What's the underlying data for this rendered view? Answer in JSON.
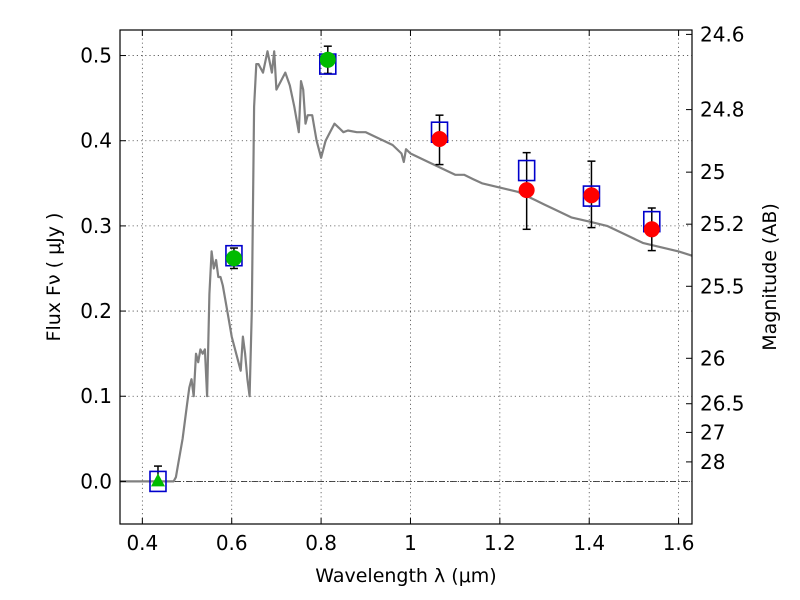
{
  "chart_data": {
    "type": "scatter",
    "xlabel": "Wavelength  λ (μm)",
    "ylabel": "Flux  Fν  ( μJy )",
    "ylabel_right": "Magnitude (AB)",
    "xlim": [
      0.35,
      1.63
    ],
    "ylim": [
      -0.05,
      0.53
    ],
    "x_ticks": [
      0.4,
      0.6,
      0.8,
      1.0,
      1.2,
      1.4,
      1.6
    ],
    "x_tick_labels": [
      "0.4",
      "0.6",
      "0.8",
      "1",
      "1.2",
      "1.4",
      "1.6"
    ],
    "y_ticks": [
      0.0,
      0.1,
      0.2,
      0.3,
      0.4,
      0.5
    ],
    "y_tick_labels": [
      "0.0",
      "0.1",
      "0.2",
      "0.3",
      "0.4",
      "0.5"
    ],
    "right_ticks": [
      {
        "label": "24.6",
        "mag": 24.6
      },
      {
        "label": "24.8",
        "mag": 24.8
      },
      {
        "label": "25",
        "mag": 25.0
      },
      {
        "label": "25.2",
        "mag": 25.2
      },
      {
        "label": "25.5",
        "mag": 25.5
      },
      {
        "label": "26",
        "mag": 26.0
      },
      {
        "label": "26.5",
        "mag": 26.5
      },
      {
        "label": "27",
        "mag": 27.0
      },
      {
        "label": "28",
        "mag": 28.0
      }
    ],
    "grid": true,
    "colors": {
      "template": "#808080",
      "model_box": "#0000cc",
      "detection_red": "#ff0000",
      "detection_green": "#00bb00",
      "errorbar": "#000000",
      "zero_line": "#333333"
    },
    "template_sed": {
      "x": [
        0.35,
        0.47,
        0.475,
        0.48,
        0.49,
        0.5,
        0.505,
        0.51,
        0.515,
        0.52,
        0.525,
        0.53,
        0.535,
        0.54,
        0.545,
        0.55,
        0.555,
        0.56,
        0.565,
        0.57,
        0.575,
        0.58,
        0.59,
        0.6,
        0.61,
        0.62,
        0.625,
        0.63,
        0.635,
        0.64,
        0.645,
        0.65,
        0.655,
        0.66,
        0.67,
        0.68,
        0.69,
        0.695,
        0.7,
        0.71,
        0.72,
        0.73,
        0.74,
        0.75,
        0.755,
        0.76,
        0.765,
        0.77,
        0.78,
        0.79,
        0.8,
        0.81,
        0.82,
        0.83,
        0.84,
        0.85,
        0.86,
        0.88,
        0.9,
        0.92,
        0.94,
        0.96,
        0.98,
        0.985,
        0.99,
        1.0,
        1.02,
        1.04,
        1.06,
        1.08,
        1.1,
        1.12,
        1.14,
        1.16,
        1.2,
        1.24,
        1.28,
        1.3,
        1.32,
        1.36,
        1.4,
        1.44,
        1.48,
        1.52,
        1.56,
        1.6,
        1.63
      ],
      "y": [
        0.0,
        0.0,
        0.005,
        0.02,
        0.05,
        0.09,
        0.11,
        0.12,
        0.1,
        0.15,
        0.14,
        0.155,
        0.15,
        0.155,
        0.1,
        0.22,
        0.27,
        0.25,
        0.26,
        0.24,
        0.24,
        0.23,
        0.2,
        0.17,
        0.15,
        0.13,
        0.17,
        0.15,
        0.12,
        0.1,
        0.2,
        0.44,
        0.49,
        0.49,
        0.48,
        0.505,
        0.48,
        0.505,
        0.46,
        0.47,
        0.48,
        0.465,
        0.44,
        0.41,
        0.47,
        0.46,
        0.42,
        0.43,
        0.43,
        0.4,
        0.38,
        0.4,
        0.41,
        0.42,
        0.415,
        0.41,
        0.412,
        0.41,
        0.41,
        0.405,
        0.4,
        0.395,
        0.385,
        0.375,
        0.39,
        0.385,
        0.38,
        0.375,
        0.37,
        0.365,
        0.36,
        0.36,
        0.355,
        0.35,
        0.345,
        0.34,
        0.33,
        0.325,
        0.32,
        0.31,
        0.305,
        0.3,
        0.29,
        0.28,
        0.275,
        0.27,
        0.265
      ]
    },
    "model_boxes": [
      {
        "x": 0.435,
        "y": 0.0
      },
      {
        "x": 0.605,
        "y": 0.265
      },
      {
        "x": 0.815,
        "y": 0.49
      },
      {
        "x": 1.065,
        "y": 0.41
      },
      {
        "x": 1.26,
        "y": 0.365
      },
      {
        "x": 1.405,
        "y": 0.335
      },
      {
        "x": 1.54,
        "y": 0.305
      }
    ],
    "detections": [
      {
        "x": 0.435,
        "y": 0.0,
        "yerr_low": 0.0,
        "yerr_high": 0.018,
        "marker": "triangle",
        "color": "green"
      },
      {
        "x": 0.605,
        "y": 0.262,
        "yerr_low": 0.012,
        "yerr_high": 0.012,
        "marker": "circle",
        "color": "green"
      },
      {
        "x": 0.815,
        "y": 0.495,
        "yerr_low": 0.016,
        "yerr_high": 0.016,
        "marker": "circle",
        "color": "green"
      },
      {
        "x": 1.065,
        "y": 0.402,
        "yerr_low": 0.03,
        "yerr_high": 0.028,
        "marker": "circle",
        "color": "red"
      },
      {
        "x": 1.26,
        "y": 0.342,
        "yerr_low": 0.046,
        "yerr_high": 0.044,
        "marker": "circle",
        "color": "red"
      },
      {
        "x": 1.405,
        "y": 0.336,
        "yerr_low": 0.038,
        "yerr_high": 0.04,
        "marker": "circle",
        "color": "red"
      },
      {
        "x": 1.54,
        "y": 0.296,
        "yerr_low": 0.025,
        "yerr_high": 0.025,
        "marker": "circle",
        "color": "red"
      }
    ]
  }
}
